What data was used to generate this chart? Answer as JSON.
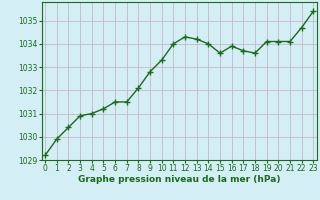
{
  "x": [
    0,
    1,
    2,
    3,
    4,
    5,
    6,
    7,
    8,
    9,
    10,
    11,
    12,
    13,
    14,
    15,
    16,
    17,
    18,
    19,
    20,
    21,
    22,
    23
  ],
  "y": [
    1029.2,
    1029.9,
    1030.4,
    1030.9,
    1031.0,
    1031.2,
    1031.5,
    1031.5,
    1032.1,
    1032.8,
    1033.3,
    1034.0,
    1034.3,
    1034.2,
    1034.0,
    1033.6,
    1033.9,
    1033.7,
    1033.6,
    1034.1,
    1034.1,
    1034.1,
    1034.7,
    1035.4
  ],
  "line_color": "#1a6b1a",
  "marker": "+",
  "marker_size": 5,
  "bg_color": "#d4eef5",
  "grid_color": "#c8b8c8",
  "xlabel": "Graphe pression niveau de la mer (hPa)",
  "xlabel_color": "#1a6b1a",
  "tick_color": "#1a6b1a",
  "ylim": [
    1029,
    1035.8
  ],
  "xlim": [
    -0.3,
    23.3
  ],
  "yticks": [
    1029,
    1030,
    1031,
    1032,
    1033,
    1034,
    1035
  ],
  "xticks": [
    0,
    1,
    2,
    3,
    4,
    5,
    6,
    7,
    8,
    9,
    10,
    11,
    12,
    13,
    14,
    15,
    16,
    17,
    18,
    19,
    20,
    21,
    22,
    23
  ],
  "linewidth": 1.0,
  "marker_edge_width": 1.0
}
